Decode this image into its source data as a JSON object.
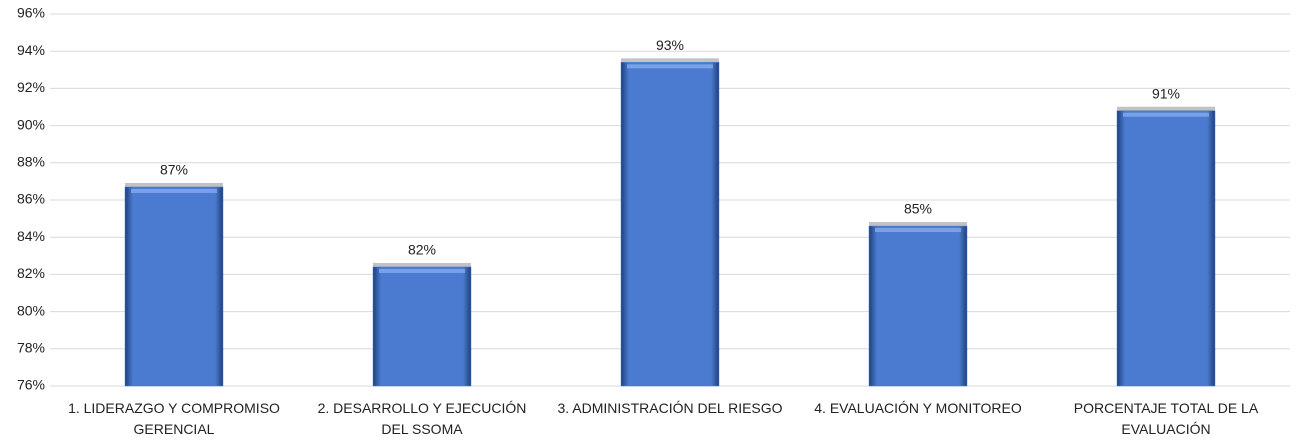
{
  "chart_data": {
    "type": "bar",
    "categories": [
      "1. LIDERAZGO Y COMPROMISO GERENCIAL",
      "2. DESARROLLO Y EJECUCIÓN DEL SSOMA",
      "3. ADMINISTRACIÓN DEL RIESGO",
      "4. EVALUACIÓN Y MONITOREO",
      "PORCENTAJE TOTAL DE LA EVALUACIÓN"
    ],
    "values": [
      86.7,
      82.4,
      93.4,
      84.6,
      90.8
    ],
    "value_labels": [
      "87%",
      "82%",
      "93%",
      "85%",
      "91%"
    ],
    "color": "#4a7bd0",
    "ylim": [
      76,
      96
    ],
    "yticks": [
      {
        "value": 76,
        "label": "76%"
      },
      {
        "value": 78,
        "label": "78%"
      },
      {
        "value": 80,
        "label": "80%"
      },
      {
        "value": 82,
        "label": "82%"
      },
      {
        "value": 84,
        "label": "84%"
      },
      {
        "value": 86,
        "label": "86%"
      },
      {
        "value": 88,
        "label": "88%"
      },
      {
        "value": 90,
        "label": "90%"
      },
      {
        "value": 92,
        "label": "92%"
      },
      {
        "value": 94,
        "label": "94%"
      },
      {
        "value": 96,
        "label": "96%"
      }
    ],
    "grid": true
  }
}
